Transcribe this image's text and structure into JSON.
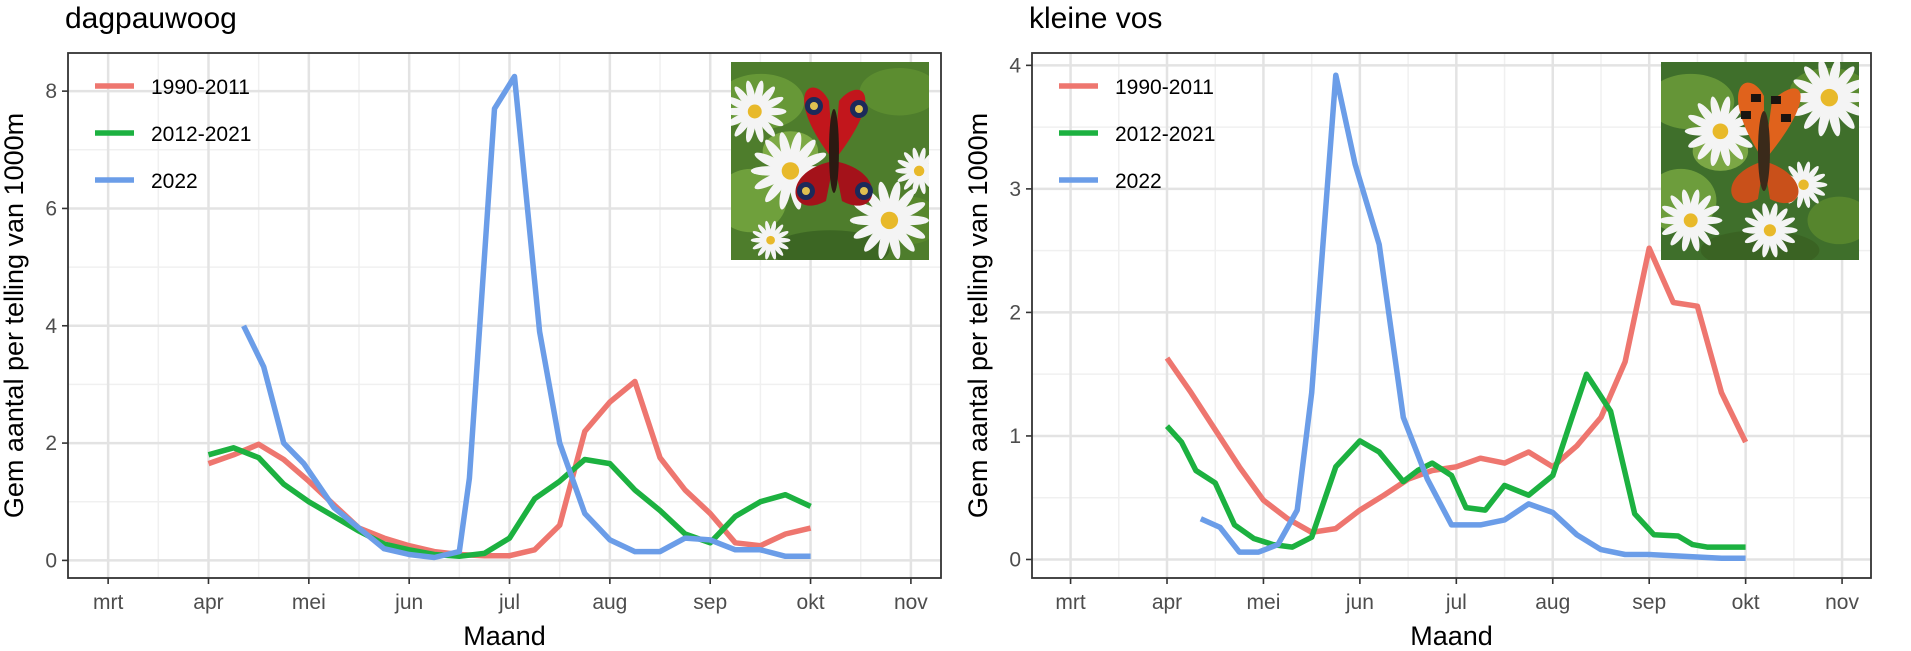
{
  "chart_data": [
    {
      "type": "line",
      "title": "dagpauwoog",
      "xlabel": "Maand",
      "ylabel": "Gem aantal per telling van 1000m",
      "x_tick_labels": [
        "mrt",
        "apr",
        "mei",
        "jun",
        "jul",
        "aug",
        "sep",
        "okt",
        "nov"
      ],
      "y_ticks": [
        0,
        2,
        4,
        6,
        8
      ],
      "xlim": [
        -0.4,
        8.3
      ],
      "ylim": [
        -0.3,
        8.65
      ],
      "grid": true,
      "legend_position": "top-left",
      "photo": "dagpauwoog-butterfly-photo",
      "series": [
        {
          "name": "1990-2011",
          "color": "#ee766f",
          "x": [
            1.0,
            1.25,
            1.5,
            1.75,
            2.0,
            2.25,
            2.5,
            2.75,
            3.0,
            3.25,
            3.5,
            3.75,
            4.0,
            4.25,
            4.5,
            4.75,
            5.0,
            5.25,
            5.5,
            5.75,
            6.0,
            6.25,
            6.5,
            6.75,
            7.0
          ],
          "y": [
            1.65,
            1.8,
            1.98,
            1.72,
            1.35,
            0.95,
            0.55,
            0.38,
            0.25,
            0.15,
            0.1,
            0.08,
            0.08,
            0.18,
            0.6,
            2.2,
            2.7,
            3.05,
            1.75,
            1.2,
            0.8,
            0.3,
            0.25,
            0.45,
            0.55
          ]
        },
        {
          "name": "2012-2021",
          "color": "#1cb140",
          "x": [
            1.0,
            1.25,
            1.5,
            1.75,
            2.0,
            2.25,
            2.5,
            2.75,
            3.0,
            3.25,
            3.5,
            3.75,
            4.0,
            4.25,
            4.5,
            4.75,
            5.0,
            5.25,
            5.5,
            5.75,
            6.0,
            6.25,
            6.5,
            6.75,
            7.0
          ],
          "y": [
            1.8,
            1.92,
            1.75,
            1.3,
            1.0,
            0.75,
            0.5,
            0.28,
            0.18,
            0.1,
            0.07,
            0.12,
            0.38,
            1.05,
            1.35,
            1.72,
            1.65,
            1.2,
            0.85,
            0.45,
            0.3,
            0.75,
            1.0,
            1.12,
            0.92
          ]
        },
        {
          "name": "2022",
          "color": "#6b9de8",
          "x": [
            1.35,
            1.55,
            1.75,
            1.95,
            2.25,
            2.5,
            2.75,
            3.0,
            3.25,
            3.5,
            3.6,
            3.85,
            4.05,
            4.3,
            4.5,
            4.75,
            5.0,
            5.25,
            5.5,
            5.75,
            6.0,
            6.25,
            6.5,
            6.75,
            7.0
          ],
          "y": [
            4.0,
            3.3,
            2.0,
            1.65,
            0.9,
            0.55,
            0.2,
            0.1,
            0.05,
            0.15,
            1.4,
            7.7,
            8.25,
            3.9,
            2.0,
            0.8,
            0.35,
            0.15,
            0.15,
            0.38,
            0.35,
            0.18,
            0.18,
            0.07,
            0.07
          ]
        }
      ]
    },
    {
      "type": "line",
      "title": "kleine vos",
      "xlabel": "Maand",
      "ylabel": "Gem aantal per telling van 1000m",
      "x_tick_labels": [
        "mrt",
        "apr",
        "mei",
        "jun",
        "jul",
        "aug",
        "sep",
        "okt",
        "nov"
      ],
      "y_ticks": [
        0,
        1,
        2,
        3,
        4
      ],
      "xlim": [
        -0.4,
        8.3
      ],
      "ylim": [
        -0.15,
        4.1
      ],
      "grid": true,
      "legend_position": "top-left",
      "photo": "kleine-vos-butterfly-photo",
      "series": [
        {
          "name": "1990-2011",
          "color": "#ee766f",
          "x": [
            1.0,
            1.25,
            1.5,
            1.75,
            2.0,
            2.25,
            2.5,
            2.75,
            3.0,
            3.25,
            3.5,
            3.75,
            4.0,
            4.25,
            4.5,
            4.75,
            5.0,
            5.25,
            5.5,
            5.75,
            6.0,
            6.25,
            6.5,
            6.75,
            7.0
          ],
          "y": [
            1.63,
            1.35,
            1.05,
            0.75,
            0.48,
            0.33,
            0.22,
            0.25,
            0.4,
            0.52,
            0.65,
            0.72,
            0.75,
            0.82,
            0.78,
            0.87,
            0.75,
            0.92,
            1.15,
            1.6,
            2.52,
            2.08,
            2.05,
            1.35,
            0.95
          ]
        },
        {
          "name": "2012-2021",
          "color": "#1cb140",
          "x": [
            1.0,
            1.15,
            1.3,
            1.5,
            1.7,
            1.9,
            2.1,
            2.3,
            2.5,
            2.75,
            3.0,
            3.2,
            3.45,
            3.6,
            3.75,
            3.95,
            4.1,
            4.3,
            4.5,
            4.75,
            5.0,
            5.2,
            5.35,
            5.6,
            5.85,
            6.05,
            6.3,
            6.45,
            6.6,
            6.8,
            7.0
          ],
          "y": [
            1.08,
            0.95,
            0.72,
            0.62,
            0.28,
            0.17,
            0.12,
            0.1,
            0.18,
            0.75,
            0.96,
            0.87,
            0.63,
            0.72,
            0.78,
            0.68,
            0.42,
            0.4,
            0.6,
            0.52,
            0.68,
            1.15,
            1.5,
            1.2,
            0.37,
            0.2,
            0.19,
            0.12,
            0.1,
            0.1,
            0.1
          ]
        },
        {
          "name": "2022",
          "color": "#6b9de8",
          "x": [
            1.35,
            1.55,
            1.75,
            1.95,
            2.15,
            2.35,
            2.5,
            2.75,
            2.95,
            3.2,
            3.45,
            3.7,
            3.95,
            4.25,
            4.5,
            4.75,
            5.0,
            5.25,
            5.5,
            5.75,
            6.0,
            6.25,
            6.5,
            6.75,
            7.0
          ],
          "y": [
            0.33,
            0.26,
            0.06,
            0.06,
            0.12,
            0.4,
            1.35,
            3.92,
            3.2,
            2.55,
            1.15,
            0.65,
            0.28,
            0.28,
            0.32,
            0.45,
            0.38,
            0.2,
            0.08,
            0.04,
            0.04,
            0.03,
            0.02,
            0.01,
            0.01
          ]
        }
      ]
    }
  ]
}
